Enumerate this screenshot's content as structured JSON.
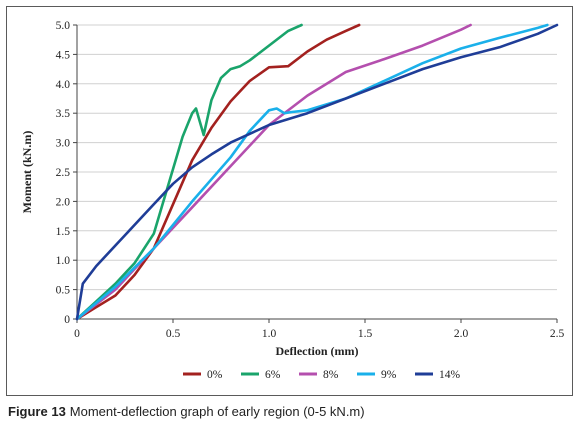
{
  "caption": {
    "label": "Figure 13",
    "text": "Moment-deflection graph of early region (0-5 kN.m)"
  },
  "chart_data": {
    "type": "line",
    "xlabel": "Deflection (mm)",
    "ylabel": "Moment (kN.m)",
    "xlim": [
      0,
      2.5
    ],
    "ylim": [
      0,
      5.0
    ],
    "xticks": [
      "0",
      "0.5",
      "1.0",
      "1.5",
      "2.0",
      "2.5"
    ],
    "yticks": [
      "0",
      "0.5",
      "1.0",
      "1.5",
      "2.0",
      "2.5",
      "3.0",
      "3.5",
      "4.0",
      "4.5",
      "5.0"
    ],
    "grid": "horizontal",
    "legend": "bottom",
    "series": [
      {
        "name": "0%",
        "color": "#a3211f",
        "x": [
          0,
          0.1,
          0.2,
          0.3,
          0.4,
          0.5,
          0.6,
          0.7,
          0.8,
          0.9,
          1.0,
          1.1,
          1.2,
          1.3,
          1.4,
          1.47
        ],
        "y": [
          0,
          0.2,
          0.4,
          0.75,
          1.2,
          1.95,
          2.7,
          3.25,
          3.7,
          4.05,
          4.28,
          4.3,
          4.55,
          4.75,
          4.9,
          5.0
        ]
      },
      {
        "name": "6%",
        "color": "#1aa46b",
        "x": [
          0,
          0.1,
          0.2,
          0.3,
          0.4,
          0.45,
          0.5,
          0.55,
          0.6,
          0.62,
          0.66,
          0.7,
          0.75,
          0.8,
          0.85,
          0.9,
          1.0,
          1.1,
          1.17
        ],
        "y": [
          0,
          0.3,
          0.6,
          0.95,
          1.45,
          2.0,
          2.55,
          3.1,
          3.5,
          3.58,
          3.13,
          3.72,
          4.1,
          4.25,
          4.3,
          4.4,
          4.65,
          4.9,
          5.0
        ]
      },
      {
        "name": "8%",
        "color": "#b44fae",
        "x": [
          0,
          0.2,
          0.4,
          0.6,
          0.8,
          1.0,
          1.2,
          1.4,
          1.6,
          1.8,
          2.0,
          2.05
        ],
        "y": [
          0,
          0.5,
          1.2,
          1.9,
          2.6,
          3.3,
          3.8,
          4.2,
          4.42,
          4.65,
          4.92,
          5.0
        ]
      },
      {
        "name": "9%",
        "color": "#1ab0ea",
        "x": [
          0,
          0.2,
          0.4,
          0.6,
          0.8,
          0.9,
          1.0,
          1.04,
          1.08,
          1.12,
          1.2,
          1.4,
          1.6,
          1.8,
          2.0,
          2.2,
          2.4,
          2.45
        ],
        "y": [
          0,
          0.55,
          1.2,
          2.0,
          2.75,
          3.2,
          3.55,
          3.58,
          3.5,
          3.52,
          3.55,
          3.75,
          4.05,
          4.35,
          4.6,
          4.78,
          4.95,
          5.0
        ]
      },
      {
        "name": "14%",
        "color": "#1f3d97",
        "x": [
          0,
          0.03,
          0.1,
          0.2,
          0.3,
          0.4,
          0.5,
          0.6,
          0.7,
          0.8,
          0.9,
          1.0,
          1.2,
          1.4,
          1.6,
          1.8,
          2.0,
          2.2,
          2.4,
          2.5
        ],
        "y": [
          0,
          0.6,
          0.9,
          1.25,
          1.6,
          1.95,
          2.3,
          2.58,
          2.8,
          3.0,
          3.15,
          3.3,
          3.5,
          3.75,
          4.0,
          4.25,
          4.45,
          4.62,
          4.85,
          5.0
        ]
      }
    ]
  }
}
